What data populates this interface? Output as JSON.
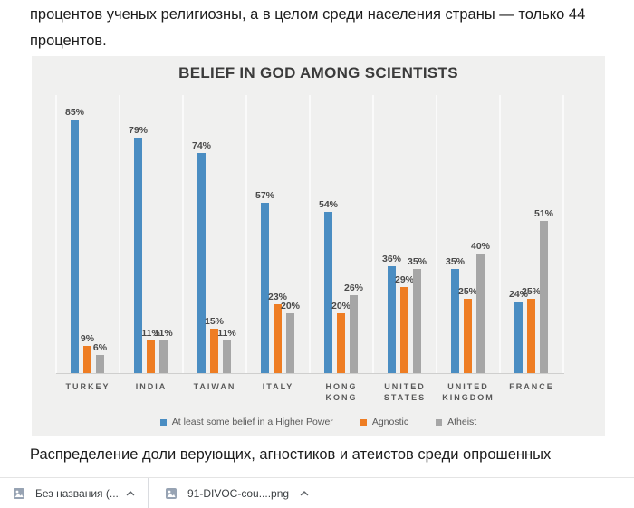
{
  "page": {
    "top_paragraph_lines": [
      "процентов ученых религиозны, а в целом среди населения страны — только 44",
      "процентов."
    ],
    "caption": "Распределение доли верующих, агностиков и атеистов среди опрошенных"
  },
  "chart_data": {
    "type": "bar",
    "title": "BELIEF IN GOD AMONG SCIENTISTS",
    "categories": [
      "TURKEY",
      "INDIA",
      "TAIWAN",
      "ITALY",
      "HONG KONG",
      "UNITED STATES",
      "UNITED KINGDOM",
      "FRANCE"
    ],
    "series": [
      {
        "name": "At least some belief in a Higher Power",
        "color": "#4a8dc2",
        "values": [
          85,
          79,
          74,
          57,
          54,
          36,
          35,
          24
        ]
      },
      {
        "name": "Agnostic",
        "color": "#ee7d23",
        "values": [
          9,
          11,
          15,
          23,
          20,
          29,
          25,
          25
        ]
      },
      {
        "name": "Atheist",
        "color": "#a6a6a6",
        "values": [
          6,
          11,
          11,
          20,
          26,
          35,
          40,
          51
        ]
      }
    ],
    "value_suffix": "%",
    "ylim": [
      0,
      93
    ],
    "grid": "vertical-category-separators",
    "legend_position": "bottom",
    "background": "#f0f0ef"
  },
  "downloads_bar": {
    "items": [
      {
        "filename": "Без названия (....png"
      },
      {
        "filename": "91-DIVOC-cou....png"
      }
    ]
  }
}
